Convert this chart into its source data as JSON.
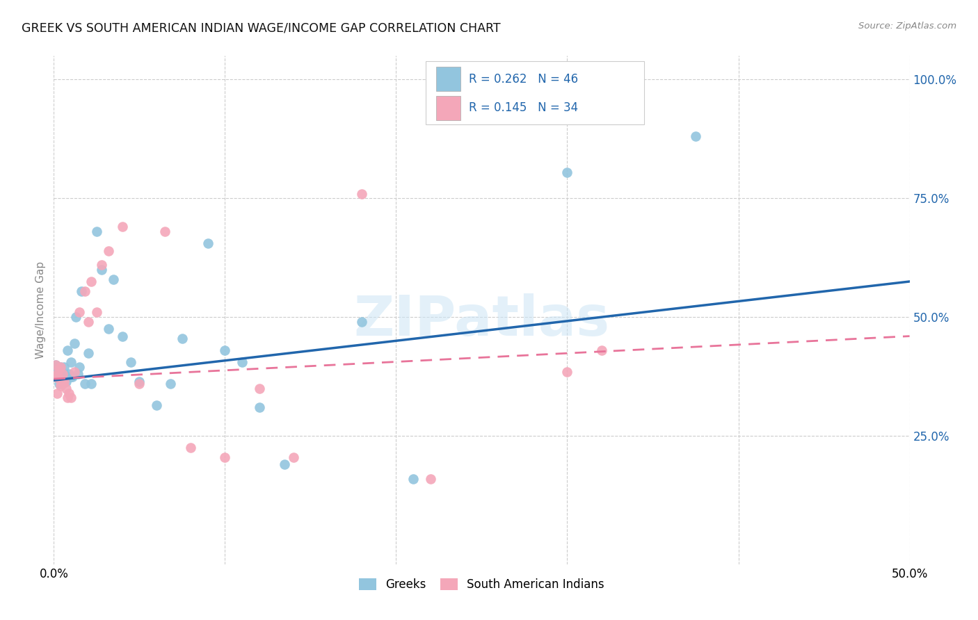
{
  "title": "GREEK VS SOUTH AMERICAN INDIAN WAGE/INCOME GAP CORRELATION CHART",
  "source": "Source: ZipAtlas.com",
  "ylabel": "Wage/Income Gap",
  "xlim": [
    0.0,
    0.5
  ],
  "ylim": [
    -0.02,
    1.05
  ],
  "ytick_vals": [
    0.25,
    0.5,
    0.75,
    1.0
  ],
  "ytick_labels": [
    "25.0%",
    "50.0%",
    "75.0%",
    "100.0%"
  ],
  "xtick_vals": [
    0.0,
    0.1,
    0.2,
    0.3,
    0.4,
    0.5
  ],
  "xtick_labels": [
    "0.0%",
    "",
    "",
    "",
    "",
    "50.0%"
  ],
  "legend_greek_R": "0.262",
  "legend_greek_N": "46",
  "legend_sai_R": "0.145",
  "legend_sai_N": "34",
  "legend_entries": [
    "Greeks",
    "South American Indians"
  ],
  "blue_color": "#92c5de",
  "pink_color": "#f4a7b9",
  "blue_line_color": "#2166ac",
  "pink_line_color": "#e8749a",
  "watermark": "ZIPatlas",
  "greeks_x": [
    0.001,
    0.001,
    0.002,
    0.002,
    0.003,
    0.003,
    0.003,
    0.004,
    0.004,
    0.005,
    0.005,
    0.006,
    0.006,
    0.007,
    0.008,
    0.009,
    0.01,
    0.01,
    0.011,
    0.012,
    0.013,
    0.014,
    0.015,
    0.016,
    0.018,
    0.02,
    0.022,
    0.025,
    0.028,
    0.032,
    0.035,
    0.04,
    0.045,
    0.05,
    0.06,
    0.068,
    0.075,
    0.09,
    0.1,
    0.11,
    0.12,
    0.135,
    0.18,
    0.21,
    0.3,
    0.375
  ],
  "greeks_y": [
    0.4,
    0.385,
    0.395,
    0.375,
    0.39,
    0.37,
    0.36,
    0.38,
    0.395,
    0.375,
    0.365,
    0.38,
    0.395,
    0.365,
    0.43,
    0.38,
    0.405,
    0.375,
    0.375,
    0.445,
    0.5,
    0.38,
    0.395,
    0.555,
    0.36,
    0.425,
    0.36,
    0.68,
    0.6,
    0.475,
    0.58,
    0.46,
    0.405,
    0.365,
    0.315,
    0.36,
    0.455,
    0.655,
    0.43,
    0.405,
    0.31,
    0.19,
    0.49,
    0.16,
    0.805,
    0.88
  ],
  "sai_x": [
    0.001,
    0.001,
    0.002,
    0.002,
    0.003,
    0.003,
    0.004,
    0.004,
    0.005,
    0.005,
    0.006,
    0.007,
    0.008,
    0.009,
    0.01,
    0.012,
    0.015,
    0.018,
    0.02,
    0.022,
    0.025,
    0.028,
    0.032,
    0.04,
    0.05,
    0.065,
    0.08,
    0.1,
    0.12,
    0.14,
    0.18,
    0.22,
    0.3,
    0.32
  ],
  "sai_y": [
    0.4,
    0.375,
    0.38,
    0.34,
    0.37,
    0.39,
    0.355,
    0.395,
    0.36,
    0.38,
    0.365,
    0.35,
    0.33,
    0.34,
    0.33,
    0.385,
    0.51,
    0.555,
    0.49,
    0.575,
    0.51,
    0.61,
    0.64,
    0.69,
    0.36,
    0.68,
    0.225,
    0.205,
    0.35,
    0.205,
    0.76,
    0.16,
    0.385,
    0.43
  ],
  "greek_line_x0": 0.0,
  "greek_line_y0": 0.367,
  "greek_line_x1": 0.5,
  "greek_line_y1": 0.575,
  "sai_line_x0": 0.0,
  "sai_line_y0": 0.37,
  "sai_line_x1": 0.5,
  "sai_line_y1": 0.46
}
